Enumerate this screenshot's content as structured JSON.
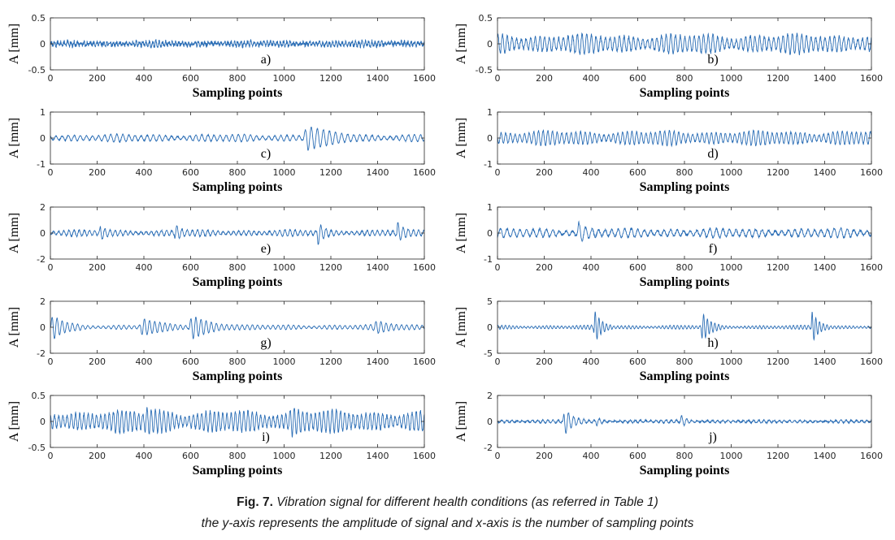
{
  "caption": {
    "fig_ref": "Fig. 7.",
    "line1": "Vibration signal for different health conditions (as referred in Table 1)",
    "line2": "the y-axis represents the amplitude of signal and x-axis is the number of sampling points"
  },
  "colors": {
    "signal": "#2a6db5",
    "axis": "#262626"
  },
  "chart_data": [
    {
      "type": "line",
      "label": "a)",
      "xlabel": "Sampling points",
      "ylabel": "A [mm]",
      "xlim": [
        0,
        1600
      ],
      "ylim": [
        -0.5,
        0.5
      ],
      "yticks": [
        -0.5,
        0,
        0.5
      ],
      "xticks": [
        0,
        200,
        400,
        600,
        800,
        1000,
        1200,
        1400,
        1600
      ],
      "signal": {
        "n": 1600,
        "base_amp": 0.05,
        "noise": 0.04,
        "period": 14,
        "bursts": []
      }
    },
    {
      "type": "line",
      "label": "b)",
      "xlabel": "Sampling points",
      "ylabel": "A [mm]",
      "xlim": [
        0,
        1600
      ],
      "ylim": [
        -0.5,
        0.5
      ],
      "yticks": [
        -0.5,
        0,
        0.5
      ],
      "xticks": [
        0,
        200,
        400,
        600,
        800,
        1000,
        1200,
        1400,
        1600
      ],
      "signal": {
        "n": 1600,
        "base_amp": 0.2,
        "noise": 0.03,
        "period": 20,
        "bursts": []
      }
    },
    {
      "type": "line",
      "label": "c)",
      "xlabel": "Sampling points",
      "ylabel": "A [mm]",
      "xlim": [
        0,
        1600
      ],
      "ylim": [
        -1,
        1
      ],
      "yticks": [
        -1,
        0,
        1
      ],
      "xticks": [
        0,
        200,
        400,
        600,
        800,
        1000,
        1200,
        1400,
        1600
      ],
      "signal": {
        "n": 1600,
        "base_amp": 0.15,
        "noise": 0.02,
        "period": 26,
        "bursts": [
          [
            1080,
            250,
            0.5
          ]
        ]
      }
    },
    {
      "type": "line",
      "label": "d)",
      "xlabel": "Sampling points",
      "ylabel": "A [mm]",
      "xlim": [
        0,
        1600
      ],
      "ylim": [
        -1,
        1
      ],
      "yticks": [
        -1,
        0,
        1
      ],
      "xticks": [
        0,
        200,
        400,
        600,
        800,
        1000,
        1200,
        1400,
        1600
      ],
      "signal": {
        "n": 1600,
        "base_amp": 0.3,
        "noise": 0.03,
        "period": 20,
        "bursts": []
      }
    },
    {
      "type": "line",
      "label": "e)",
      "xlabel": "Sampling points",
      "ylabel": "A [mm]",
      "xlim": [
        0,
        1600
      ],
      "ylim": [
        -2,
        2
      ],
      "yticks": [
        -2,
        0,
        2
      ],
      "xticks": [
        0,
        200,
        400,
        600,
        800,
        1000,
        1200,
        1400,
        1600
      ],
      "signal": {
        "n": 1600,
        "base_amp": 0.25,
        "noise": 0.05,
        "period": 22,
        "bursts": [
          [
            210,
            50,
            0.6
          ],
          [
            530,
            60,
            0.7
          ],
          [
            1140,
            60,
            1.0
          ],
          [
            1480,
            60,
            0.9
          ]
        ]
      }
    },
    {
      "type": "line",
      "label": "f)",
      "xlabel": "Sampling points",
      "ylabel": "A [mm]",
      "xlim": [
        0,
        1600
      ],
      "ylim": [
        -1,
        1
      ],
      "yticks": [
        -1,
        0,
        1
      ],
      "xticks": [
        0,
        200,
        400,
        600,
        800,
        1000,
        1200,
        1400,
        1600
      ],
      "signal": {
        "n": 1600,
        "base_amp": 0.18,
        "noise": 0.04,
        "period": 28,
        "bursts": [
          [
            340,
            80,
            0.4
          ]
        ]
      }
    },
    {
      "type": "line",
      "label": "g)",
      "xlabel": "Sampling points",
      "ylabel": "A [mm]",
      "xlim": [
        0,
        1600
      ],
      "ylim": [
        -2,
        2
      ],
      "yticks": [
        -2,
        0,
        2
      ],
      "xticks": [
        0,
        200,
        400,
        600,
        800,
        1000,
        1200,
        1400,
        1600
      ],
      "signal": {
        "n": 1600,
        "base_amp": 0.2,
        "noise": 0.02,
        "period": 22,
        "bursts": [
          [
            0,
            130,
            1.1
          ],
          [
            380,
            200,
            0.7
          ],
          [
            590,
            220,
            1.0
          ],
          [
            1380,
            220,
            0.4
          ]
        ]
      }
    },
    {
      "type": "line",
      "label": "h)",
      "xlabel": "Sampling points",
      "ylabel": "A [mm]",
      "xlim": [
        0,
        1600
      ],
      "ylim": [
        -5,
        5
      ],
      "yticks": [
        -5,
        0,
        5
      ],
      "xticks": [
        0,
        200,
        400,
        600,
        800,
        1000,
        1200,
        1400,
        1600
      ],
      "signal": {
        "n": 1600,
        "base_amp": 0.4,
        "noise": 0.05,
        "period": 16,
        "bursts": [
          [
            410,
            80,
            3.5
          ],
          [
            870,
            90,
            3.2
          ],
          [
            1340,
            80,
            3.5
          ]
        ]
      }
    },
    {
      "type": "line",
      "label": "i)",
      "xlabel": "Sampling points",
      "ylabel": "A [mm]",
      "xlim": [
        0,
        1600
      ],
      "ylim": [
        -0.5,
        0.5
      ],
      "yticks": [
        -0.5,
        0,
        0.5
      ],
      "xticks": [
        0,
        200,
        400,
        600,
        800,
        1000,
        1200,
        1400,
        1600
      ],
      "signal": {
        "n": 1600,
        "base_amp": 0.22,
        "noise": 0.03,
        "period": 18,
        "bursts": [
          [
            400,
            160,
            0.15
          ],
          [
            1020,
            160,
            0.15
          ]
        ]
      }
    },
    {
      "type": "line",
      "label": "j)",
      "xlabel": "Sampling points",
      "ylabel": "A [mm]",
      "xlim": [
        0,
        1600
      ],
      "ylim": [
        -2,
        2
      ],
      "yticks": [
        -2,
        0,
        2
      ],
      "xticks": [
        0,
        200,
        400,
        600,
        800,
        1000,
        1200,
        1400,
        1600
      ],
      "signal": {
        "n": 1600,
        "base_amp": 0.12,
        "noise": 0.05,
        "period": 22,
        "bursts": [
          [
            280,
            100,
            1.2
          ],
          [
            420,
            60,
            0.3
          ],
          [
            780,
            60,
            0.5
          ]
        ]
      }
    }
  ]
}
